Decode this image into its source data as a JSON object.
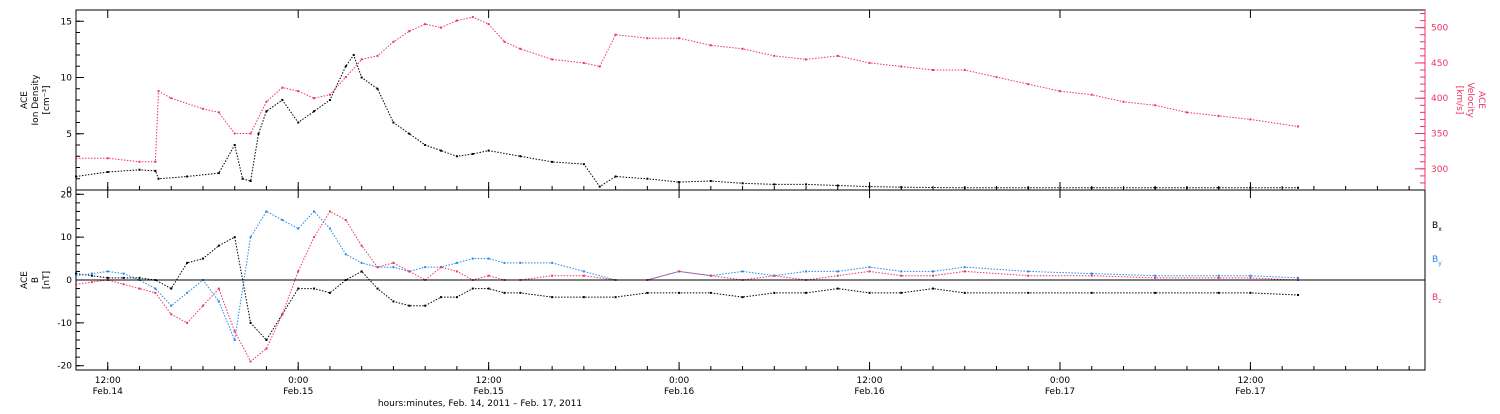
{
  "colors": {
    "black": "#000000",
    "pink": "#ee3366",
    "blue": "#2288ee"
  },
  "x_axis": {
    "ticks": [
      {
        "time": "12:00",
        "date": "Feb.14",
        "hour": 12
      },
      {
        "time": "0:00",
        "date": "Feb.15",
        "hour": 24
      },
      {
        "time": "12:00",
        "date": "Feb.15",
        "hour": 36
      },
      {
        "time": "0:00",
        "date": "Feb.16",
        "hour": 48
      },
      {
        "time": "12:00",
        "date": "Feb.16",
        "hour": 60
      },
      {
        "time": "0:00",
        "date": "Feb.17",
        "hour": 72
      },
      {
        "time": "12:00",
        "date": "Feb.17",
        "hour": 84
      }
    ],
    "label": "hours:minutes, Feb. 14, 2011 – Feb. 17, 2011",
    "range_hours": [
      10,
      95
    ]
  },
  "panels": {
    "top": {
      "ylabel_lines": [
        "ACE",
        "Ion Density",
        "[cm⁻³]"
      ],
      "y2label_lines": [
        "ACE",
        "Velocity",
        "[km/s]"
      ],
      "left_ticks": [
        "0",
        "5",
        "10",
        "15"
      ],
      "right_ticks": [
        "300",
        "350",
        "400",
        "450",
        "500"
      ]
    },
    "bottom": {
      "ylabel_lines": [
        "ACE",
        "B",
        "[nT]"
      ],
      "left_ticks": [
        "-20",
        "-10",
        "0",
        "10",
        "20"
      ],
      "legend": [
        {
          "label": "B",
          "sub": "x",
          "color": "#000000"
        },
        {
          "label": "B",
          "sub": "y",
          "color": "#2288ee"
        },
        {
          "label": "B",
          "sub": "z",
          "color": "#ee3366"
        }
      ]
    }
  },
  "chart_data": [
    {
      "type": "scatter",
      "title": "",
      "xlabel": "hours:minutes, Feb. 14, 2011 – Feb. 17, 2011",
      "ylabel": "ACE Ion Density [cm⁻³]",
      "y2label": "ACE Velocity [km/s]",
      "xlim_hours_from_feb14_0000": [
        10,
        95
      ],
      "ylim": [
        0,
        16
      ],
      "y2lim": [
        270,
        525
      ],
      "series": [
        {
          "name": "",
          "axis": "left",
          "color": "#000000",
          "x": [
            10,
            12,
            14,
            15,
            15.2,
            17,
            19,
            20,
            20.5,
            21,
            21.5,
            22,
            23,
            24,
            25,
            26,
            27,
            27.5,
            28,
            29,
            30,
            31,
            32,
            33,
            34,
            35,
            36,
            38,
            40,
            42,
            43,
            44,
            46,
            48,
            50,
            52,
            54,
            56,
            58,
            60,
            62,
            66,
            70,
            74,
            78,
            80,
            82,
            84,
            87
          ],
          "y": [
            1.2,
            1.6,
            1.8,
            1.7,
            1,
            1.2,
            1.5,
            4,
            1,
            0.8,
            5,
            7,
            8,
            6,
            7,
            8,
            11,
            12,
            10,
            9,
            6,
            5,
            4,
            3.5,
            3,
            3.2,
            3.5,
            3,
            2.5,
            2.3,
            0.3,
            1.2,
            1,
            0.7,
            0.8,
            0.6,
            0.5,
            0.5,
            0.4,
            0.3,
            0.25,
            0.2,
            0.2,
            0.2,
            0.2,
            0.2,
            0.2,
            0.2,
            0.2
          ]
        },
        {
          "name": "",
          "axis": "right",
          "color": "#ee3366",
          "x": [
            10,
            12,
            14,
            15,
            15.2,
            16,
            18,
            19,
            20,
            21,
            22,
            23,
            24,
            25,
            26,
            27,
            28,
            29,
            30,
            31,
            32,
            33,
            34,
            35,
            36,
            37,
            38,
            40,
            42,
            43,
            44,
            46,
            48,
            50,
            52,
            54,
            56,
            58,
            60,
            62,
            64,
            66,
            68,
            70,
            72,
            74,
            76,
            78,
            80,
            82,
            84,
            87
          ],
          "y": [
            315,
            315,
            310,
            310,
            410,
            400,
            385,
            380,
            350,
            350,
            395,
            415,
            410,
            400,
            405,
            430,
            455,
            460,
            480,
            495,
            505,
            500,
            510,
            515,
            505,
            480,
            470,
            455,
            450,
            445,
            490,
            485,
            485,
            475,
            470,
            460,
            455,
            460,
            450,
            445,
            440,
            440,
            430,
            420,
            410,
            405,
            395,
            390,
            380,
            375,
            370,
            360
          ]
        }
      ]
    },
    {
      "type": "scatter",
      "title": "",
      "xlabel": "hours:minutes, Feb. 14, 2011 – Feb. 17, 2011",
      "ylabel": "ACE B [nT]",
      "xlim_hours_from_feb14_0000": [
        10,
        95
      ],
      "ylim": [
        -21,
        21
      ],
      "series": [
        {
          "name": "Bx",
          "color": "#000000",
          "x": [
            10,
            11,
            12,
            13,
            14,
            15,
            16,
            17,
            18,
            19,
            20,
            21,
            22,
            23,
            24,
            25,
            26,
            27,
            28,
            29,
            30,
            31,
            32,
            33,
            34,
            35,
            36,
            37,
            38,
            40,
            42,
            44,
            46,
            48,
            50,
            52,
            54,
            56,
            58,
            60,
            62,
            64,
            66,
            70,
            74,
            78,
            82,
            84,
            87
          ],
          "y": [
            1.5,
            1,
            0.5,
            0.5,
            0.5,
            0,
            -2,
            4,
            5,
            8,
            10,
            -10,
            -14,
            -8,
            -2,
            -2,
            -3,
            0,
            2,
            -2,
            -5,
            -6,
            -6,
            -4,
            -4,
            -2,
            -2,
            -3,
            -3,
            -4,
            -4,
            -4,
            -3,
            -3,
            -3,
            -4,
            -3,
            -3,
            -2,
            -3,
            -3,
            -2,
            -3,
            -3,
            -3,
            -3,
            -3,
            -3,
            -3.5
          ]
        },
        {
          "name": "By",
          "color": "#2288ee",
          "x": [
            10,
            11,
            12,
            13,
            14,
            15,
            16,
            17,
            18,
            19,
            20,
            21,
            22,
            23,
            24,
            25,
            26,
            27,
            28,
            29,
            30,
            31,
            32,
            33,
            34,
            35,
            36,
            37,
            38,
            40,
            42,
            44,
            46,
            48,
            50,
            52,
            54,
            56,
            58,
            60,
            62,
            64,
            66,
            70,
            74,
            78,
            82,
            84,
            87
          ],
          "y": [
            1,
            1.5,
            2,
            1.5,
            0,
            -2,
            -6,
            -3,
            0,
            -5,
            -14,
            10,
            16,
            14,
            12,
            16,
            12,
            6,
            4,
            3,
            3,
            2,
            3,
            3,
            4,
            5,
            5,
            4,
            4,
            4,
            2,
            0,
            0,
            2,
            1,
            2,
            1,
            2,
            2,
            3,
            2,
            2,
            3,
            2,
            1.5,
            1,
            1,
            1,
            0.5
          ]
        },
        {
          "name": "Bz",
          "color": "#ee3366",
          "x": [
            10,
            11,
            12,
            13,
            14,
            15,
            16,
            17,
            18,
            19,
            20,
            21,
            22,
            23,
            24,
            25,
            26,
            27,
            28,
            29,
            30,
            31,
            32,
            33,
            34,
            35,
            36,
            37,
            38,
            40,
            42,
            44,
            46,
            48,
            50,
            52,
            54,
            56,
            58,
            60,
            62,
            64,
            66,
            70,
            74,
            78,
            82,
            84,
            87
          ],
          "y": [
            -1,
            -0.5,
            0,
            -1,
            -2,
            -3,
            -8,
            -10,
            -6,
            -2,
            -12,
            -19,
            -16,
            -8,
            2,
            10,
            16,
            14,
            8,
            3,
            4,
            2,
            0,
            3,
            2,
            0,
            1,
            0,
            0,
            1,
            1,
            0,
            0,
            2,
            1,
            0,
            1,
            0,
            1,
            2,
            1,
            1,
            2,
            1,
            1,
            0.5,
            0.5,
            0.5,
            0
          ]
        }
      ]
    }
  ]
}
